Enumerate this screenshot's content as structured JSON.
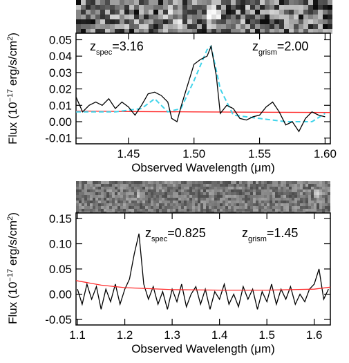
{
  "chart_data": [
    {
      "type": "line",
      "ylabel": [
        {
          "text": "Flux (10"
        },
        {
          "text": "−17",
          "shift": "super"
        },
        {
          "text": " erg/s/cm"
        },
        {
          "text": "2",
          "shift": "super"
        },
        {
          "text": ")"
        }
      ],
      "xlabel": "Observed Wavelength (μm)",
      "annotations": [
        [
          {
            "text": "z"
          },
          {
            "text": "spec",
            "shift": "sub"
          },
          {
            "text": "=3.16"
          }
        ],
        [
          {
            "text": "z"
          },
          {
            "text": "grism",
            "shift": "sub"
          },
          {
            "text": "=2.00"
          }
        ]
      ],
      "xlim": [
        1.41,
        1.604
      ],
      "ylim": [
        -0.0135,
        0.054
      ],
      "xticks": [
        1.45,
        {
          "value": 1.5,
          "label": "1.50"
        },
        1.55,
        {
          "value": 1.6,
          "label": "1.60"
        }
      ],
      "yticks": [
        -0.01,
        {
          "value": 0,
          "label": "0.00"
        },
        0.01,
        0.02,
        0.03,
        0.04,
        0.05
      ],
      "series": [
        {
          "color": "#ff2a2a",
          "dash": "solid",
          "x": [
            1.41,
            1.45,
            1.5,
            1.55,
            1.604
          ],
          "values": [
            0.0065,
            0.0062,
            0.006,
            0.0058,
            0.0056
          ]
        },
        {
          "color": "#3fd3ea",
          "dash": "dashed",
          "x": [
            1.41,
            1.44,
            1.46,
            1.47,
            1.48,
            1.49,
            1.5,
            1.51,
            1.513,
            1.52,
            1.53,
            1.55,
            1.57,
            1.59,
            1.6
          ],
          "values": [
            0.006,
            0.006,
            0.008,
            0.014,
            0.006,
            0.008,
            0.025,
            0.044,
            0.046,
            0.02,
            0.004,
            0.002,
            0.0,
            0.0,
            0.005
          ]
        },
        {
          "color": "#000000",
          "dash": "solid",
          "x": [
            1.41,
            1.415,
            1.42,
            1.425,
            1.43,
            1.435,
            1.44,
            1.445,
            1.45,
            1.455,
            1.46,
            1.465,
            1.47,
            1.475,
            1.48,
            1.483,
            1.487,
            1.49,
            1.495,
            1.5,
            1.505,
            1.51,
            1.513,
            1.517,
            1.52,
            1.525,
            1.53,
            1.535,
            1.54,
            1.545,
            1.55,
            1.555,
            1.56,
            1.565,
            1.57,
            1.575,
            1.58,
            1.585,
            1.59,
            1.595,
            1.6
          ],
          "values": [
            0.015,
            0.006,
            0.01,
            0.012,
            0.01,
            0.014,
            0.008,
            0.012,
            0.009,
            0.004,
            0.01,
            0.017,
            0.018,
            0.016,
            0.012,
            0.002,
            0.0,
            0.009,
            0.022,
            0.035,
            0.038,
            0.04,
            0.046,
            0.028,
            0.005,
            0.01,
            0.008,
            0.002,
            0.001,
            0.003,
            0.004,
            0.009,
            0.012,
            0.006,
            -0.002,
            0.0,
            -0.006,
            0.002,
            0.006,
            0.004,
            0.003
          ]
        }
      ]
    },
    {
      "type": "line",
      "ylabel": [
        {
          "text": "Flux (10"
        },
        {
          "text": "−17",
          "shift": "super"
        },
        {
          "text": " erg/s/cm"
        },
        {
          "text": "2",
          "shift": "super"
        },
        {
          "text": ")"
        }
      ],
      "xlabel": "Observed Wavelength (μm)",
      "annotations": [
        [
          {
            "text": "z"
          },
          {
            "text": "spec",
            "shift": "sub"
          },
          {
            "text": "=0.825"
          }
        ],
        [
          {
            "text": "z"
          },
          {
            "text": "grism",
            "shift": "sub"
          },
          {
            "text": "=1.45"
          }
        ]
      ],
      "xlim": [
        1.097,
        1.634
      ],
      "ylim": [
        -0.061,
        0.161
      ],
      "xticks": [
        1.1,
        1.2,
        1.3,
        1.4,
        1.5,
        1.6
      ],
      "yticks": [
        -0.05,
        {
          "value": 0,
          "label": "0.00"
        },
        0.05,
        {
          "value": 0.1,
          "label": "0.10"
        },
        0.15
      ],
      "series": [
        {
          "color": "#000000",
          "dash": "solid",
          "x": [
            1.1,
            1.11,
            1.12,
            1.13,
            1.14,
            1.15,
            1.16,
            1.17,
            1.18,
            1.19,
            1.2,
            1.21,
            1.22,
            1.23,
            1.24,
            1.25,
            1.26,
            1.27,
            1.28,
            1.29,
            1.3,
            1.31,
            1.32,
            1.33,
            1.34,
            1.35,
            1.36,
            1.37,
            1.38,
            1.39,
            1.4,
            1.41,
            1.42,
            1.43,
            1.44,
            1.45,
            1.46,
            1.47,
            1.48,
            1.49,
            1.5,
            1.51,
            1.52,
            1.53,
            1.54,
            1.55,
            1.56,
            1.57,
            1.58,
            1.59,
            1.6,
            1.61,
            1.62,
            1.63
          ],
          "values": [
            0.01,
            -0.02,
            0.02,
            -0.01,
            0.015,
            -0.03,
            0.01,
            -0.015,
            0.02,
            -0.02,
            0.01,
            0.03,
            0.08,
            0.12,
            0.02,
            -0.01,
            0.015,
            -0.02,
            0.005,
            -0.03,
            0.01,
            -0.015,
            0.02,
            -0.025,
            0.0,
            0.015,
            -0.02,
            0.01,
            -0.03,
            0.005,
            -0.01,
            0.02,
            -0.02,
            0.0,
            -0.025,
            0.015,
            -0.01,
            0.01,
            -0.03,
            0.005,
            -0.015,
            0.02,
            -0.02,
            0.01,
            -0.01,
            0.015,
            -0.02,
            0.0,
            -0.015,
            0.01,
            0.02,
            0.05,
            -0.01,
            0.01
          ]
        },
        {
          "color": "#ff2a2a",
          "dash": "solid",
          "x": [
            1.097,
            1.15,
            1.2,
            1.3,
            1.4,
            1.5,
            1.6,
            1.634
          ],
          "values": [
            0.027,
            0.018,
            0.013,
            0.009,
            0.008,
            0.008,
            0.01,
            0.014
          ]
        }
      ]
    }
  ]
}
